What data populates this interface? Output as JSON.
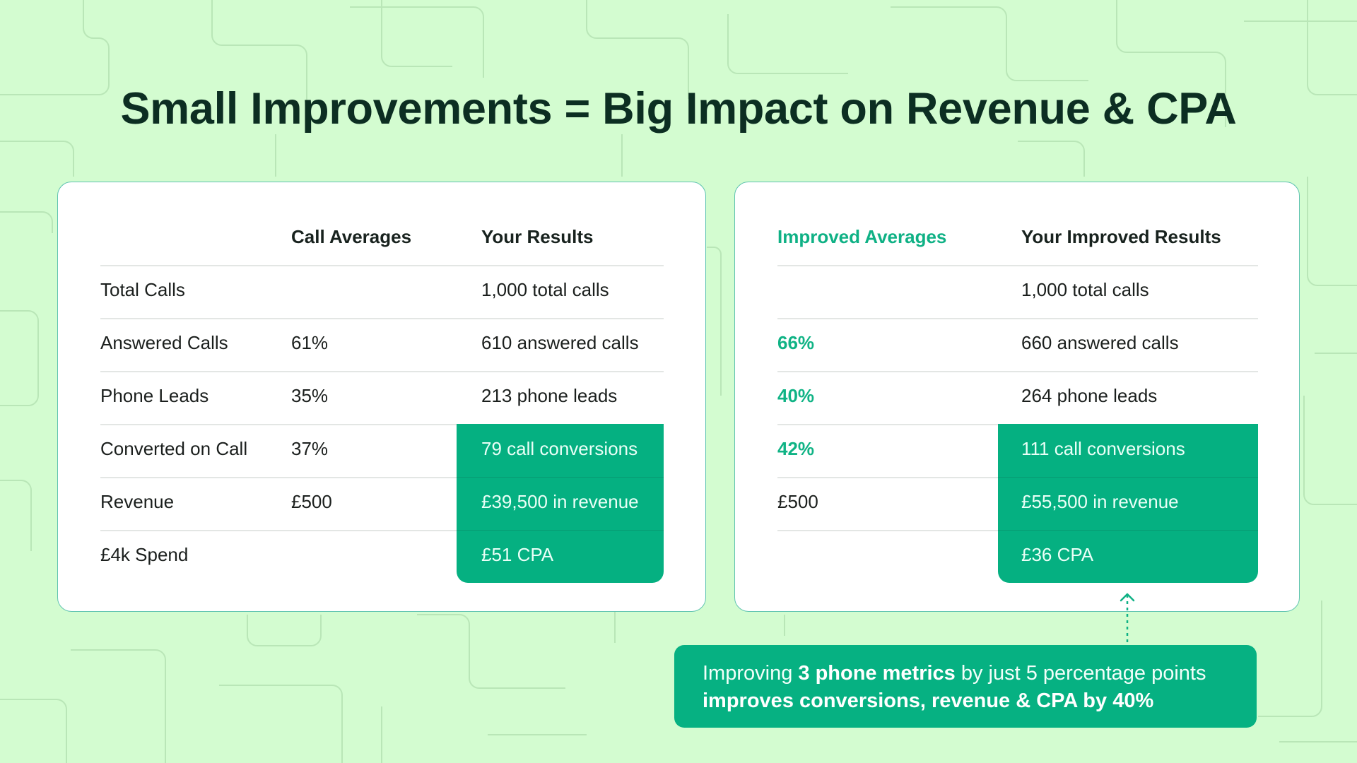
{
  "title": "Small Improvements = Big Impact on Revenue & CPA",
  "colors": {
    "background": "#d3fcd0",
    "accent_green": "#05b081",
    "accent_text": "#0fb185",
    "title": "#0c2e22",
    "card_border": "#5fc3b0"
  },
  "left_table": {
    "headers": {
      "label": "",
      "averages": "Call Averages",
      "results": "Your Results"
    },
    "rows": [
      {
        "label": "Total Calls",
        "average": "",
        "result": "1,000 total calls"
      },
      {
        "label": "Answered Calls",
        "average": "61%",
        "result": "610 answered calls"
      },
      {
        "label": "Phone Leads",
        "average": "35%",
        "result": "213 phone leads"
      },
      {
        "label": "Converted on Call",
        "average": "37%",
        "result": "79 call conversions"
      },
      {
        "label": "Revenue",
        "average": "£500",
        "result": "£39,500 in revenue"
      },
      {
        "label": "£4k Spend",
        "average": "",
        "result": "£51 CPA"
      }
    ]
  },
  "right_table": {
    "headers": {
      "averages": "Improved Averages",
      "results": "Your Improved Results"
    },
    "rows": [
      {
        "average": "",
        "result": "1,000 total calls"
      },
      {
        "average": "66%",
        "result": "660 answered calls"
      },
      {
        "average": "40%",
        "result": "264 phone leads"
      },
      {
        "average": "42%",
        "result": "111 call conversions"
      },
      {
        "average": "£500",
        "result": "£55,500 in revenue"
      },
      {
        "average": "",
        "result": "£36 CPA"
      }
    ]
  },
  "callout": {
    "line1_prefix": "Improving ",
    "line1_bold": "3 phone metrics",
    "line1_suffix": " by just 5 percentage points",
    "line2_bold": "improves conversions, revenue & CPA by 40%"
  }
}
